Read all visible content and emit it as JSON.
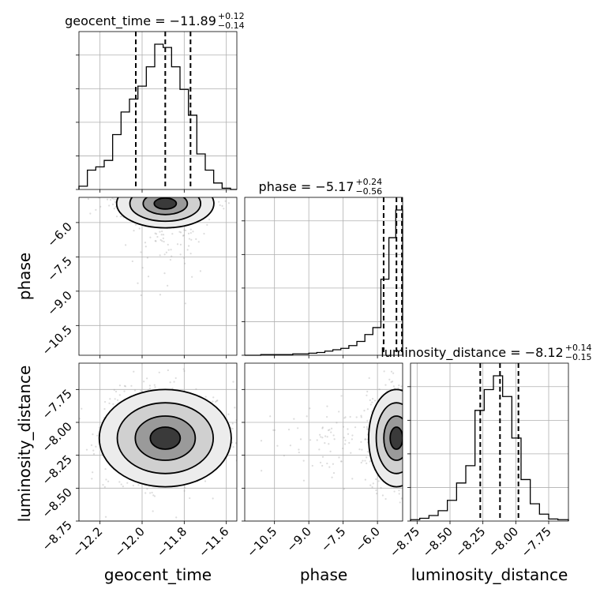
{
  "chart_data": [
    {
      "type": "histogram",
      "panel": "1d-geocent_time",
      "title_lhs": "geocent_time = −11.89",
      "title_sup": "+0.12",
      "title_sub": "−0.14",
      "xlim": [
        -12.3,
        -11.55
      ],
      "bin_edges": [
        -12.3,
        -12.26,
        -12.22,
        -12.18,
        -12.14,
        -12.1,
        -12.06,
        -12.02,
        -11.98,
        -11.94,
        -11.9,
        -11.86,
        -11.82,
        -11.78,
        -11.74,
        -11.7,
        -11.66,
        -11.62,
        -11.58,
        -11.55
      ],
      "counts": [
        5,
        30,
        35,
        45,
        85,
        120,
        140,
        160,
        190,
        225,
        220,
        190,
        155,
        115,
        55,
        30,
        10,
        2,
        0
      ],
      "quantiles": [
        -12.03,
        -11.89,
        -11.77
      ]
    },
    {
      "type": "histogram",
      "panel": "1d-phase",
      "title_lhs": "phase = −5.17",
      "title_sup": "+0.24",
      "title_sub": "−0.56",
      "xlim": [
        -11.8,
        -4.9
      ],
      "bin_edges": [
        -11.8,
        -11.45,
        -11.1,
        -10.75,
        -10.4,
        -10.05,
        -9.7,
        -9.35,
        -9.0,
        -8.65,
        -8.3,
        -7.95,
        -7.6,
        -7.25,
        -6.9,
        -6.55,
        -6.2,
        -5.85,
        -5.5,
        -5.2,
        -4.9
      ],
      "counts": [
        0,
        0,
        1,
        1,
        1,
        1,
        2,
        2,
        3,
        4,
        6,
        8,
        10,
        14,
        20,
        30,
        40,
        110,
        170,
        210
      ],
      "quantiles": [
        -5.73,
        -5.17,
        -4.93
      ]
    },
    {
      "type": "histogram",
      "panel": "1d-luminosity_distance",
      "title_lhs": "luminosity_distance = −8.12",
      "title_sup": "+0.14",
      "title_sub": "−0.15",
      "xlim": [
        -8.8,
        -7.6
      ],
      "bin_edges": [
        -8.8,
        -8.73,
        -8.66,
        -8.59,
        -8.52,
        -8.45,
        -8.38,
        -8.31,
        -8.24,
        -8.17,
        -8.1,
        -8.03,
        -7.96,
        -7.89,
        -7.82,
        -7.75,
        -7.68,
        -7.6
      ],
      "counts": [
        2,
        4,
        8,
        15,
        30,
        55,
        80,
        160,
        190,
        210,
        180,
        120,
        60,
        25,
        10,
        3,
        2
      ],
      "quantiles": [
        -8.27,
        -8.12,
        -7.98
      ]
    },
    {
      "type": "scatter-density",
      "panel": "2d-geocent_time-phase",
      "x_label": "geocent_time",
      "y_label": "phase",
      "xlim": [
        -12.3,
        -11.55
      ],
      "ylim": [
        -11.8,
        -4.9
      ],
      "center": [
        -11.89,
        -5.17
      ]
    },
    {
      "type": "scatter-density",
      "panel": "2d-geocent_time-luminosity_distance",
      "x_label": "geocent_time",
      "y_label": "luminosity_distance",
      "xlim": [
        -12.3,
        -11.55
      ],
      "ylim": [
        -8.75,
        -7.55
      ],
      "center": [
        -11.89,
        -8.12
      ]
    },
    {
      "type": "scatter-density",
      "panel": "2d-phase-luminosity_distance",
      "x_label": "phase",
      "y_label": "luminosity_distance",
      "xlim": [
        -11.8,
        -4.9
      ],
      "ylim": [
        -8.75,
        -7.55
      ],
      "center": [
        -5.17,
        -8.12
      ]
    }
  ],
  "axes": {
    "geocent_time": {
      "label": "geocent_time",
      "ticks": [
        -12.2,
        -12.0,
        -11.8,
        -11.6
      ],
      "tick_labels": [
        "−12.2",
        "−12.0",
        "−11.8",
        "−11.6"
      ]
    },
    "phase_x": {
      "label": "phase",
      "ticks": [
        -10.5,
        -9.0,
        -7.5,
        -6.0
      ],
      "tick_labels": [
        "−10.5",
        "−9.0",
        "−7.5",
        "−6.0"
      ]
    },
    "phase_y": {
      "label": "phase",
      "ticks": [
        -6.0,
        -7.5,
        -9.0,
        -10.5
      ],
      "tick_labels": [
        "−6.0",
        "−7.5",
        "−9.0",
        "−10.5"
      ]
    },
    "lumdist_y": {
      "label": "luminosity_distance",
      "ticks": [
        -7.75,
        -8.0,
        -8.25,
        -8.5,
        -8.75
      ],
      "tick_labels": [
        "−7.75",
        "−8.00",
        "−8.25",
        "−8.50",
        "−8.75"
      ]
    },
    "lumdist_x": {
      "label": "luminosity_distance",
      "ticks": [
        -8.75,
        -8.5,
        -8.25,
        -8.0,
        -7.75
      ],
      "tick_labels": [
        "−8.75",
        "−8.50",
        "−8.25",
        "−8.00",
        "−7.75"
      ]
    }
  },
  "colors": {
    "ink": "#000000",
    "grid": "#b0b0b0",
    "scatter": "#9a9a9a"
  }
}
